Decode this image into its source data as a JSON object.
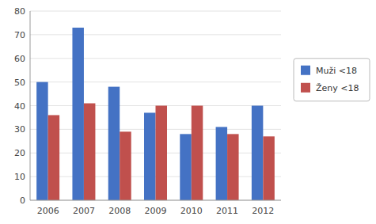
{
  "chart_data": {
    "type": "bar",
    "categories": [
      "2006",
      "2007",
      "2008",
      "2009",
      "2010",
      "2011",
      "2012"
    ],
    "series": [
      {
        "name": "Muži <18",
        "color": "#4472C4",
        "values": [
          50,
          73,
          48,
          37,
          28,
          31,
          40
        ]
      },
      {
        "name": "Ženy <18",
        "color": "#C0504D",
        "values": [
          36,
          41,
          29,
          40,
          40,
          28,
          27
        ]
      }
    ],
    "ylim": [
      0,
      80
    ],
    "yticks": [
      0,
      10,
      20,
      30,
      40,
      50,
      60,
      70,
      80
    ],
    "grid": true,
    "legend": "right"
  }
}
